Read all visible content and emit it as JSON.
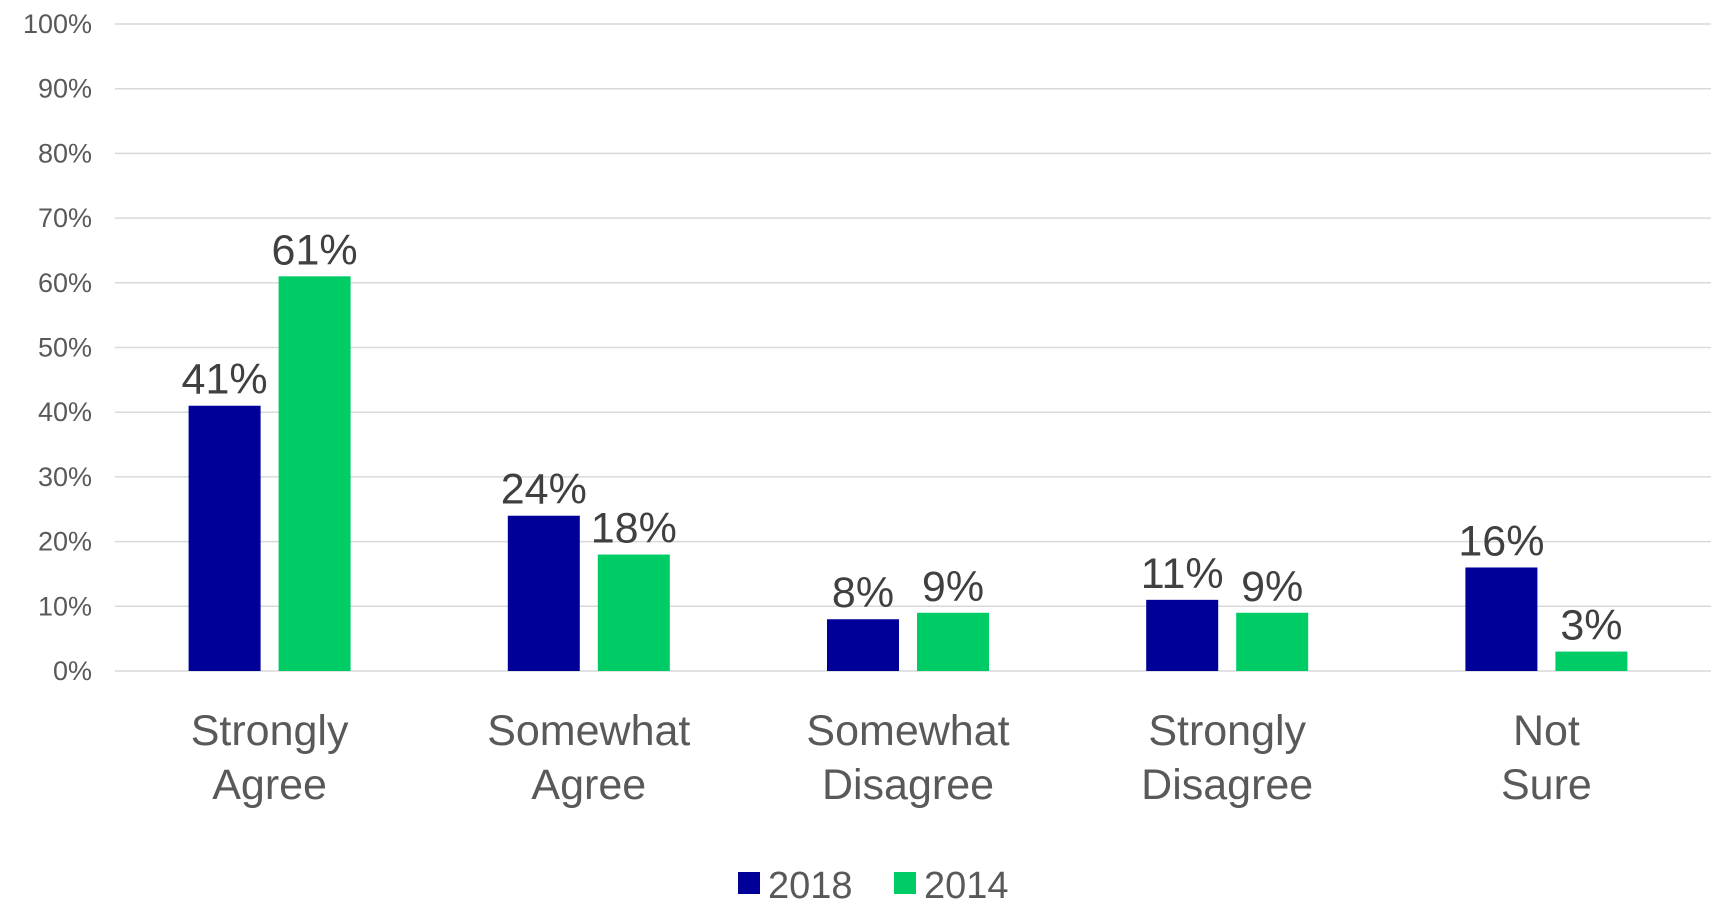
{
  "chart_data": {
    "type": "bar",
    "categories": [
      "Strongly Agree",
      "Somewhat Agree",
      "Somewhat Disagree",
      "Strongly Disagree",
      "Not Sure"
    ],
    "series": [
      {
        "name": "2018",
        "values": [
          41,
          24,
          8,
          11,
          16
        ],
        "color": "#000099"
      },
      {
        "name": "2014",
        "values": [
          61,
          18,
          9,
          9,
          3
        ],
        "color": "#00CC66"
      }
    ],
    "data_labels": [
      [
        "41%",
        "24%",
        "8%",
        "11%",
        "16%"
      ],
      [
        "61%",
        "18%",
        "9%",
        "9%",
        "3%"
      ]
    ],
    "y_ticks": [
      "0%",
      "10%",
      "20%",
      "30%",
      "40%",
      "50%",
      "60%",
      "70%",
      "80%",
      "90%",
      "100%"
    ],
    "ylim": [
      0,
      100
    ],
    "grid": true,
    "legend_position": "bottom",
    "title": "",
    "xlabel": "",
    "ylabel": ""
  }
}
